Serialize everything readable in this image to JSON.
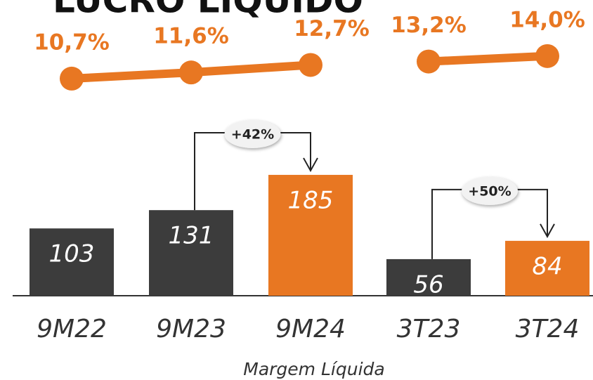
{
  "title": "LUCRO LÍQUIDO",
  "caption": "Margem Líquida",
  "chart_data": [
    {
      "type": "bar",
      "categories": [
        "9M22",
        "9M23",
        "9M24"
      ],
      "values": [
        103,
        131,
        185
      ],
      "colors": [
        "#3c3c3c",
        "#3c3c3c",
        "#e87722"
      ],
      "ylim": [
        0,
        200
      ],
      "line": {
        "values": [
          10.7,
          11.6,
          12.7
        ],
        "value_labels": [
          "10,7%",
          "11,6%",
          "12,7%"
        ],
        "color": "#e87722",
        "ylim": [
          0,
          22
        ]
      },
      "annotation": {
        "text": "+42%",
        "from": 1,
        "to": 2
      }
    },
    {
      "type": "bar",
      "categories": [
        "3T23",
        "3T24"
      ],
      "values": [
        56,
        84
      ],
      "colors": [
        "#3c3c3c",
        "#e87722"
      ],
      "ylim": [
        0,
        200
      ],
      "line": {
        "values": [
          13.2,
          14.0
        ],
        "value_labels": [
          "13,2%",
          "14,0%"
        ],
        "color": "#e87722",
        "ylim": [
          0,
          22
        ]
      },
      "annotation": {
        "text": "+50%",
        "from": 0,
        "to": 1
      }
    }
  ]
}
